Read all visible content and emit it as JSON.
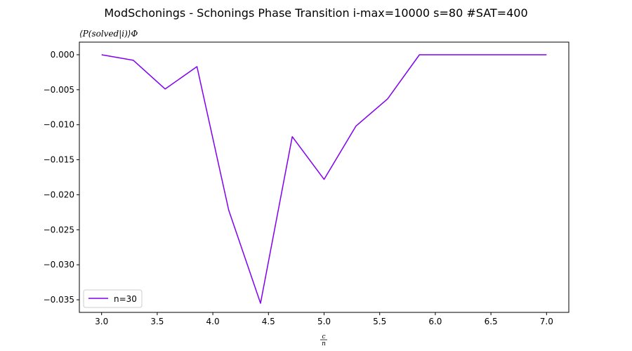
{
  "chart_data": {
    "type": "line",
    "title": "ModSchonings - Schonings Phase Transition  i-max=10000 s=80 #SAT=400",
    "ylabel": "⟨P(solved|i)⟩Φ",
    "xlabel": "c/n",
    "xlim": [
      2.8,
      7.2
    ],
    "ylim": [
      -0.0368,
      0.0018
    ],
    "xticks": [
      3.0,
      3.5,
      4.0,
      4.5,
      5.0,
      5.5,
      6.0,
      6.5,
      7.0
    ],
    "xtick_labels": [
      "3.0",
      "3.5",
      "4.0",
      "4.5",
      "5.0",
      "5.5",
      "6.0",
      "6.5",
      "7.0"
    ],
    "yticks": [
      0.0,
      -0.005,
      -0.01,
      -0.015,
      -0.02,
      -0.025,
      -0.03,
      -0.035
    ],
    "ytick_labels": [
      "0.000",
      "−0.005",
      "−0.010",
      "−0.015",
      "−0.020",
      "−0.025",
      "−0.030",
      "−0.035"
    ],
    "grid": false,
    "legend_position": "lower-left",
    "series": [
      {
        "name": "n=30",
        "color": "#8000f0",
        "x": [
          3.0,
          3.2857,
          3.5714,
          3.8571,
          4.1429,
          4.4286,
          4.7143,
          5.0,
          5.2857,
          5.5714,
          5.8571,
          6.1429,
          6.4286,
          6.7143,
          7.0
        ],
        "y": [
          0.0,
          -0.0008,
          -0.0049,
          -0.0017,
          -0.0222,
          -0.0355,
          -0.0117,
          -0.0178,
          -0.0102,
          -0.0063,
          0.0,
          0.0,
          0.0,
          0.0,
          0.0
        ]
      }
    ]
  }
}
